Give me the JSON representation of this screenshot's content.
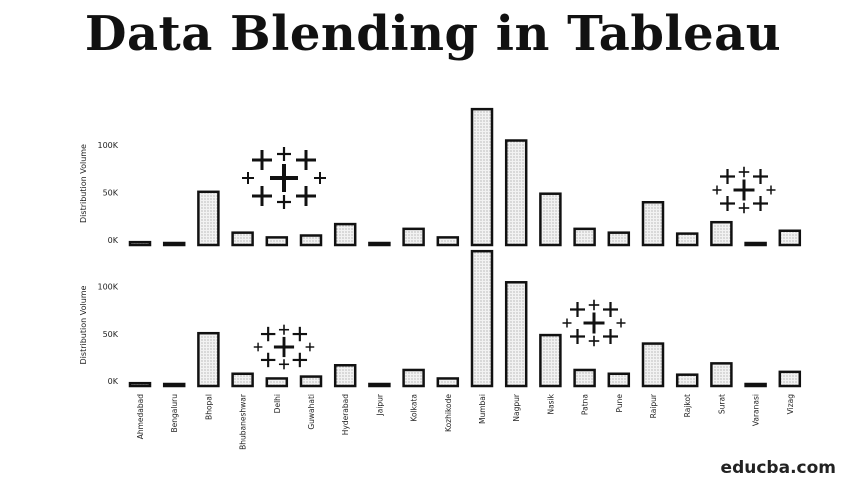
{
  "title": "Data Blending in Tableau",
  "watermark": "educba.com",
  "colors": {
    "bar_fill": "#dcdcdc",
    "bar_stroke": "#111111",
    "logo": "#111111"
  },
  "icons": [
    "tableau-logo-icon"
  ],
  "chart_data": [
    {
      "type": "bar",
      "ylabel": "Distribution Volume",
      "ylim": [
        0,
        140000
      ],
      "yticks": [
        0,
        50000,
        100000
      ],
      "ytick_labels": [
        "0K",
        "50K",
        "100K"
      ],
      "categories": [
        "Ahmedabad",
        "Bengaluru",
        "Bhopal",
        "Bhubaneshwar",
        "Delhi",
        "Guwahati",
        "Hyderabad",
        "Jaipur",
        "Kolkata",
        "Kozhikode",
        "Mumbai",
        "Nagpur",
        "Nasik",
        "Patna",
        "Pune",
        "Raipur",
        "Rajkot",
        "Surat",
        "Varanasi",
        "Vizag"
      ],
      "values": [
        3000,
        1000,
        56000,
        13000,
        8000,
        10000,
        22000,
        2000,
        17000,
        8000,
        143000,
        110000,
        54000,
        17000,
        13000,
        45000,
        12000,
        24000,
        500,
        15000
      ],
      "grid": false,
      "legend": "none"
    },
    {
      "type": "bar",
      "ylabel": "Distribution Volume",
      "ylim": [
        0,
        140000
      ],
      "yticks": [
        0,
        50000,
        100000
      ],
      "ytick_labels": [
        "0K",
        "50K",
        "100K"
      ],
      "categories": [
        "Ahmedabad",
        "Bengaluru",
        "Bhopal",
        "Bhubaneshwar",
        "Delhi",
        "Guwahati",
        "Hyderabad",
        "Jaipur",
        "Kolkata",
        "Kozhikode",
        "Mumbai",
        "Nagpur",
        "Nasik",
        "Patna",
        "Pune",
        "Raipur",
        "Rajkot",
        "Surat",
        "Varanasi",
        "Vizag"
      ],
      "values": [
        3000,
        1000,
        56000,
        13000,
        8000,
        10000,
        22000,
        2000,
        17000,
        8000,
        143000,
        110000,
        54000,
        17000,
        13000,
        45000,
        12000,
        24000,
        500,
        15000
      ],
      "grid": false,
      "legend": "none"
    }
  ]
}
